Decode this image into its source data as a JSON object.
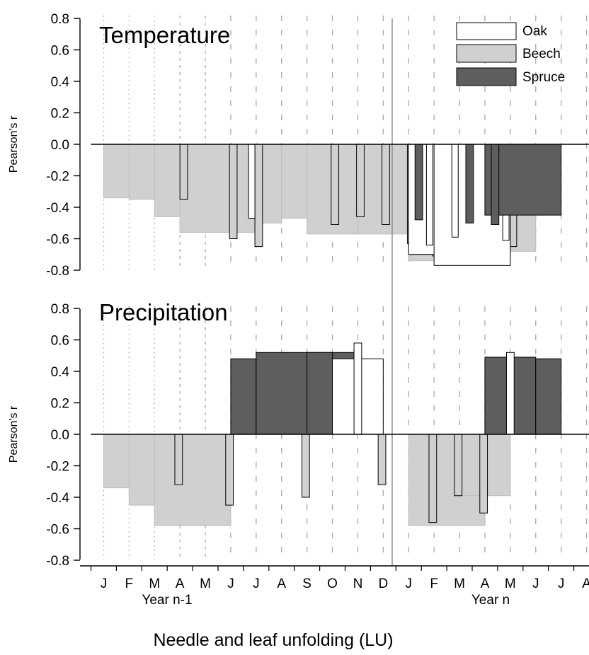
{
  "figure": {
    "xlabel": "Needle and leaf unfolding (LU)",
    "year_labels": [
      "Year n-1",
      "Year n"
    ]
  },
  "colors": {
    "oak": "#ffffff",
    "beech": "#d0d0d0",
    "spruce": "#5e5e5e",
    "grid": "#a8a8a8",
    "axis": "#000000"
  },
  "legend": [
    {
      "name": "Oak",
      "color": "#ffffff"
    },
    {
      "name": "Beech",
      "color": "#d0d0d0"
    },
    {
      "name": "Spruce",
      "color": "#5e5e5e"
    }
  ],
  "chart_data": [
    {
      "type": "bar",
      "title": "Temperature",
      "ylabel": "Pearson's r",
      "ylim": [
        -0.8,
        0.8
      ],
      "yticks": [
        0.8,
        0.6,
        0.4,
        0.2,
        0.0,
        -0.2,
        -0.4,
        -0.6,
        -0.8
      ],
      "categories": [
        "J",
        "F",
        "M",
        "A",
        "M",
        "J",
        "J",
        "A",
        "S",
        "O",
        "N",
        "D",
        "J",
        "F",
        "M",
        "A",
        "M",
        "J",
        "J",
        "A"
      ],
      "series": [
        {
          "name": "Beech",
          "bars": [
            {
              "from": 0.5,
              "to": 2.5,
              "value": -0.34
            },
            {
              "from": 1.5,
              "to": 3.5,
              "value": -0.35
            },
            {
              "from": 2.5,
              "to": 4.5,
              "value": -0.46
            },
            {
              "from": 3.5,
              "to": 6.5,
              "value": -0.56
            },
            {
              "from": 6.5,
              "to": 7.5,
              "value": -0.5
            },
            {
              "from": 7.5,
              "to": 8.5,
              "value": -0.47
            },
            {
              "from": 8.5,
              "to": 10.5,
              "value": -0.57
            },
            {
              "from": 10.5,
              "to": 12.5,
              "value": -0.57
            },
            {
              "from": 12.5,
              "to": 16.5,
              "value": -0.74
            },
            {
              "from": 15.5,
              "to": 17.5,
              "value": -0.68
            },
            {
              "from": 3.5,
              "to": 3.8,
              "value": -0.35
            },
            {
              "from": 5.45,
              "to": 5.75,
              "value": -0.6
            },
            {
              "from": 6.45,
              "to": 6.75,
              "value": -0.65
            },
            {
              "from": 9.45,
              "to": 9.75,
              "value": -0.51
            },
            {
              "from": 10.45,
              "to": 10.75,
              "value": -0.46
            },
            {
              "from": 11.45,
              "to": 11.75,
              "value": -0.51
            },
            {
              "from": 12.45,
              "to": 12.75,
              "value": -0.63
            },
            {
              "from": 13.45,
              "to": 13.75,
              "value": -0.71
            },
            {
              "from": 15.45,
              "to": 15.75,
              "value": -0.67
            },
            {
              "from": 16.45,
              "to": 16.75,
              "value": -0.65
            }
          ]
        },
        {
          "name": "Oak",
          "bars": [
            {
              "from": 12.5,
              "to": 16.5,
              "value": -0.7
            },
            {
              "from": 13.5,
              "to": 16.5,
              "value": -0.77
            },
            {
              "from": 6.2,
              "to": 6.45,
              "value": -0.47
            },
            {
              "from": 13.2,
              "to": 13.45,
              "value": -0.64
            },
            {
              "from": 14.2,
              "to": 14.45,
              "value": -0.59
            },
            {
              "from": 16.2,
              "to": 16.45,
              "value": -0.61
            }
          ]
        },
        {
          "name": "Spruce",
          "bars": [
            {
              "from": 15.5,
              "to": 18.5,
              "value": -0.45
            },
            {
              "from": 12.75,
              "to": 13.05,
              "value": -0.48
            },
            {
              "from": 14.75,
              "to": 15.05,
              "value": -0.5
            },
            {
              "from": 15.75,
              "to": 16.05,
              "value": -0.51
            }
          ]
        }
      ]
    },
    {
      "type": "bar",
      "title": "Precipitation",
      "ylabel": "Pearson's r",
      "ylim": [
        -0.8,
        0.8
      ],
      "yticks": [
        0.8,
        0.6,
        0.4,
        0.2,
        0.0,
        -0.2,
        -0.4,
        -0.6,
        -0.8
      ],
      "categories": [
        "J",
        "F",
        "M",
        "A",
        "M",
        "J",
        "J",
        "A",
        "S",
        "O",
        "N",
        "D",
        "J",
        "F",
        "M",
        "A",
        "M",
        "J",
        "J",
        "A"
      ],
      "series": [
        {
          "name": "Beech",
          "bars": [
            {
              "from": 0.5,
              "to": 2.5,
              "value": -0.34
            },
            {
              "from": 1.5,
              "to": 4.5,
              "value": -0.45
            },
            {
              "from": 2.5,
              "to": 5.5,
              "value": -0.58
            },
            {
              "from": 12.5,
              "to": 15.5,
              "value": -0.58
            },
            {
              "from": 14.5,
              "to": 16.5,
              "value": -0.39
            },
            {
              "from": 3.3,
              "to": 3.6,
              "value": -0.32
            },
            {
              "from": 5.3,
              "to": 5.6,
              "value": -0.45
            },
            {
              "from": 6.3,
              "to": 6.6,
              "value": 0.46
            },
            {
              "from": 8.3,
              "to": 8.6,
              "value": -0.4
            },
            {
              "from": 11.3,
              "to": 11.6,
              "value": -0.32
            },
            {
              "from": 13.3,
              "to": 13.6,
              "value": -0.56
            },
            {
              "from": 14.3,
              "to": 14.6,
              "value": -0.39
            },
            {
              "from": 15.3,
              "to": 15.6,
              "value": -0.5
            }
          ]
        },
        {
          "name": "Spruce",
          "bars": [
            {
              "from": 5.5,
              "to": 6.5,
              "value": 0.48
            },
            {
              "from": 6.5,
              "to": 10.5,
              "value": 0.52
            },
            {
              "from": 8.5,
              "to": 9.5,
              "value": 0.52
            },
            {
              "from": 15.5,
              "to": 17.5,
              "value": 0.49
            },
            {
              "from": 17.5,
              "to": 18.5,
              "value": 0.48
            }
          ]
        },
        {
          "name": "Oak",
          "bars": [
            {
              "from": 9.5,
              "to": 11.5,
              "value": 0.48
            },
            {
              "from": 10.35,
              "to": 10.65,
              "value": 0.58
            },
            {
              "from": 16.35,
              "to": 16.65,
              "value": 0.52
            }
          ]
        }
      ]
    }
  ]
}
